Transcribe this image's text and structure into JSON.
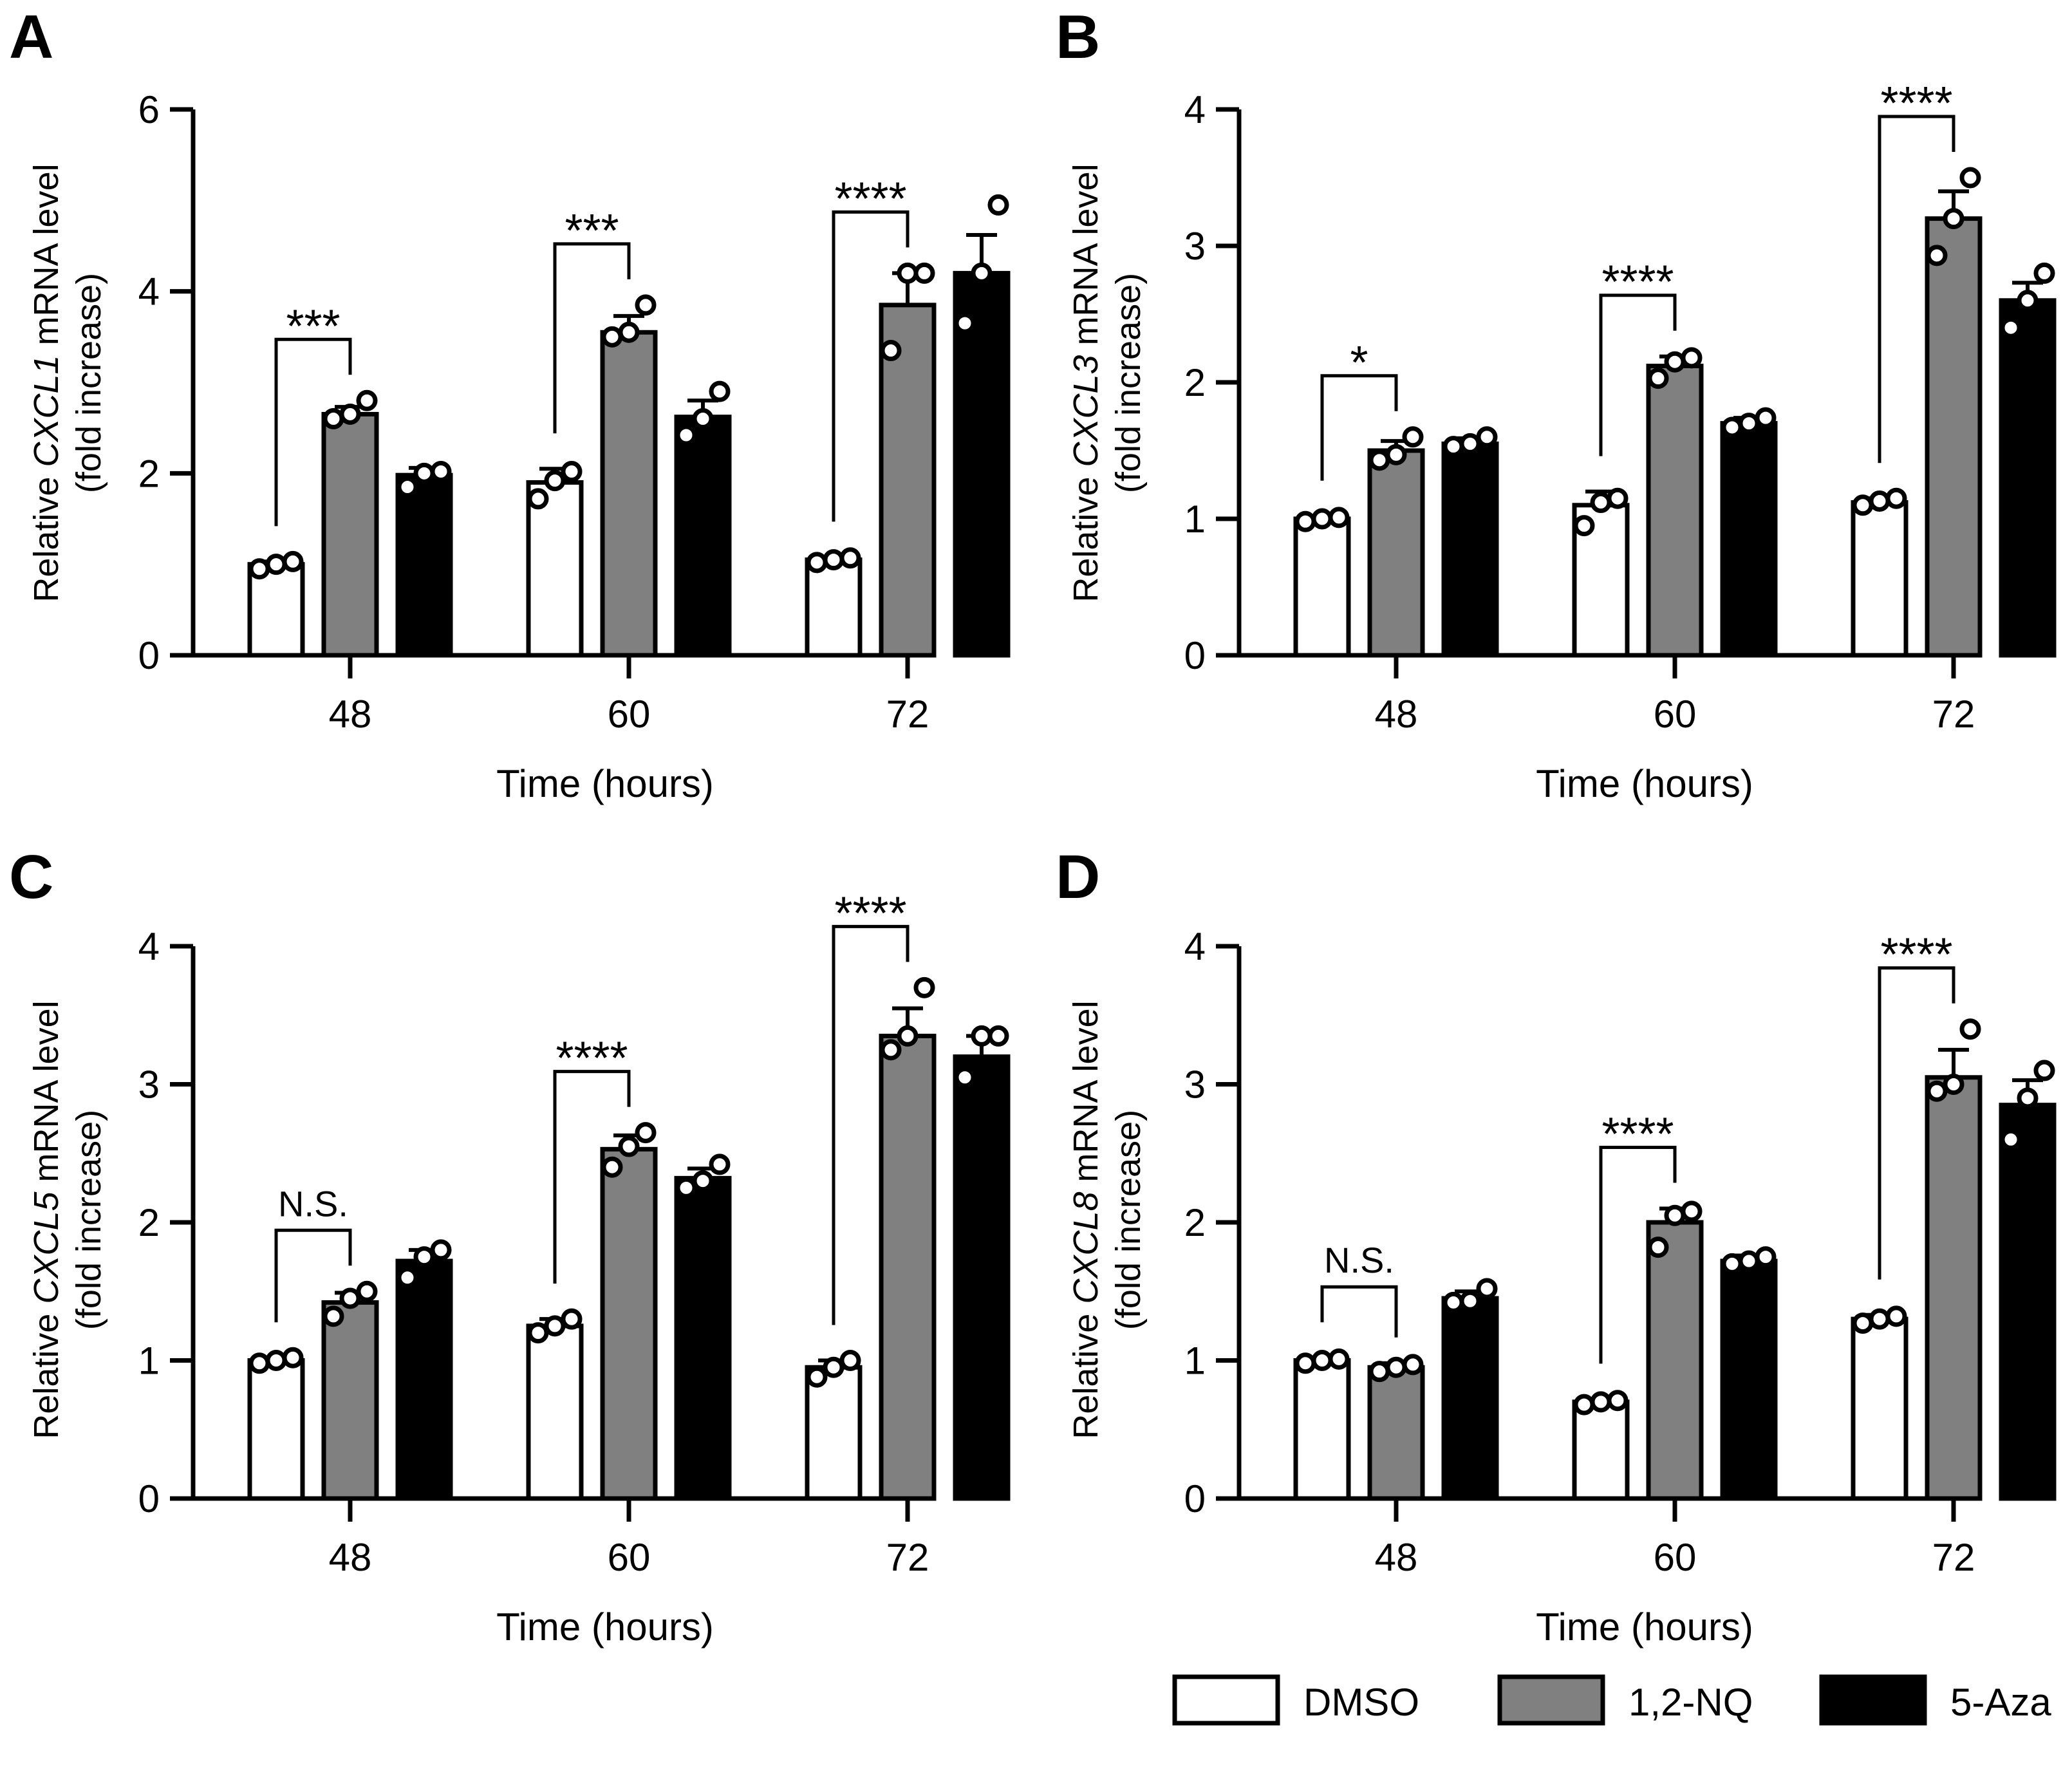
{
  "figure": {
    "x_axis_title": "Time (hours)",
    "y_axis_prefix": "Relative ",
    "y_axis_suffix": " mRNA level",
    "y_axis_line2": "(fold increase)",
    "legend": [
      {
        "label": "DMSO",
        "color": "#ffffff"
      },
      {
        "label": "1,2-NQ",
        "color": "#808080"
      },
      {
        "label": "5-Aza",
        "color": "#000000"
      }
    ]
  },
  "chart_data": [
    {
      "type": "bar",
      "panel": "A",
      "gene": "CXCL1",
      "categories": [
        "48",
        "60",
        "72"
      ],
      "ylim": [
        0,
        6
      ],
      "yticks": [
        0,
        2,
        4,
        6
      ],
      "series": [
        {
          "name": "DMSO",
          "values": [
            1.0,
            1.9,
            1.05
          ],
          "errors": [
            0.03,
            0.15,
            0.03
          ],
          "points": [
            [
              0.95,
              1.0,
              1.03
            ],
            [
              1.72,
              1.92,
              2.02
            ],
            [
              1.02,
              1.05,
              1.07
            ]
          ]
        },
        {
          "name": "1,2-NQ",
          "values": [
            2.65,
            3.55,
            3.85
          ],
          "errors": [
            0.08,
            0.18,
            0.35
          ],
          "points": [
            [
              2.6,
              2.65,
              2.8
            ],
            [
              3.5,
              3.55,
              3.85
            ],
            [
              3.35,
              4.2,
              4.2
            ]
          ]
        },
        {
          "name": "5-Aza",
          "values": [
            1.98,
            2.62,
            4.2
          ],
          "errors": [
            0.08,
            0.18,
            0.42
          ],
          "points": [
            [
              1.85,
              2.0,
              2.02
            ],
            [
              2.42,
              2.6,
              2.9
            ],
            [
              3.65,
              4.2,
              4.95
            ]
          ]
        }
      ],
      "significance": [
        "***",
        "***",
        "****"
      ]
    },
    {
      "type": "bar",
      "panel": "B",
      "gene": "CXCL3",
      "categories": [
        "48",
        "60",
        "72"
      ],
      "ylim": [
        0,
        4
      ],
      "yticks": [
        0,
        1,
        2,
        3,
        4
      ],
      "series": [
        {
          "name": "DMSO",
          "values": [
            1.0,
            1.1,
            1.12
          ],
          "errors": [
            0.02,
            0.1,
            0.03
          ],
          "points": [
            [
              0.98,
              1.0,
              1.01
            ],
            [
              0.95,
              1.12,
              1.15
            ],
            [
              1.1,
              1.13,
              1.15
            ]
          ]
        },
        {
          "name": "1,2-NQ",
          "values": [
            1.5,
            2.12,
            3.2
          ],
          "errors": [
            0.07,
            0.07,
            0.2
          ],
          "points": [
            [
              1.43,
              1.47,
              1.6
            ],
            [
              2.03,
              2.15,
              2.18
            ],
            [
              2.93,
              3.2,
              3.5
            ]
          ]
        },
        {
          "name": "5-Aza",
          "values": [
            1.55,
            1.7,
            2.6
          ],
          "errors": [
            0.04,
            0.04,
            0.13
          ],
          "points": [
            [
              1.53,
              1.55,
              1.6
            ],
            [
              1.67,
              1.7,
              1.74
            ],
            [
              2.4,
              2.6,
              2.8
            ]
          ]
        }
      ],
      "significance": [
        "*",
        "****",
        "****"
      ]
    },
    {
      "type": "bar",
      "panel": "C",
      "gene": "CXCL5",
      "categories": [
        "48",
        "60",
        "72"
      ],
      "ylim": [
        0,
        4
      ],
      "yticks": [
        0,
        1,
        2,
        3,
        4
      ],
      "series": [
        {
          "name": "DMSO",
          "values": [
            1.0,
            1.25,
            0.95
          ],
          "errors": [
            0.02,
            0.05,
            0.05
          ],
          "points": [
            [
              0.98,
              1.0,
              1.02
            ],
            [
              1.2,
              1.25,
              1.3
            ],
            [
              0.88,
              0.95,
              1.0
            ]
          ]
        },
        {
          "name": "1,2-NQ",
          "values": [
            1.42,
            2.53,
            3.35
          ],
          "errors": [
            0.07,
            0.1,
            0.2
          ],
          "points": [
            [
              1.32,
              1.45,
              1.5
            ],
            [
              2.4,
              2.55,
              2.65
            ],
            [
              3.25,
              3.35,
              3.7
            ]
          ]
        },
        {
          "name": "5-Aza",
          "values": [
            1.72,
            2.32,
            3.2
          ],
          "errors": [
            0.08,
            0.07,
            0.15
          ],
          "points": [
            [
              1.6,
              1.75,
              1.8
            ],
            [
              2.25,
              2.3,
              2.42
            ],
            [
              3.05,
              3.35,
              3.35
            ]
          ]
        }
      ],
      "significance": [
        "N.S.",
        "****",
        "****"
      ]
    },
    {
      "type": "bar",
      "panel": "D",
      "gene": "CXCL8",
      "categories": [
        "48",
        "60",
        "72"
      ],
      "ylim": [
        0,
        4
      ],
      "yticks": [
        0,
        1,
        2,
        3,
        4
      ],
      "series": [
        {
          "name": "DMSO",
          "values": [
            1.0,
            0.7,
            1.3
          ],
          "errors": [
            0.02,
            0.02,
            0.03
          ],
          "points": [
            [
              0.98,
              1.0,
              1.01
            ],
            [
              0.68,
              0.7,
              0.71
            ],
            [
              1.27,
              1.3,
              1.32
            ]
          ]
        },
        {
          "name": "1,2-NQ",
          "values": [
            0.95,
            2.0,
            3.05
          ],
          "errors": [
            0.03,
            0.1,
            0.2
          ],
          "points": [
            [
              0.92,
              0.95,
              0.97
            ],
            [
              1.82,
              2.05,
              2.08
            ],
            [
              2.95,
              3.0,
              3.4
            ]
          ]
        },
        {
          "name": "5-Aza",
          "values": [
            1.45,
            1.72,
            2.85
          ],
          "errors": [
            0.05,
            0.04,
            0.18
          ],
          "points": [
            [
              1.42,
              1.43,
              1.52
            ],
            [
              1.7,
              1.72,
              1.75
            ],
            [
              2.6,
              2.9,
              3.1
            ]
          ]
        }
      ],
      "significance": [
        "N.S.",
        "****",
        "****"
      ]
    }
  ]
}
